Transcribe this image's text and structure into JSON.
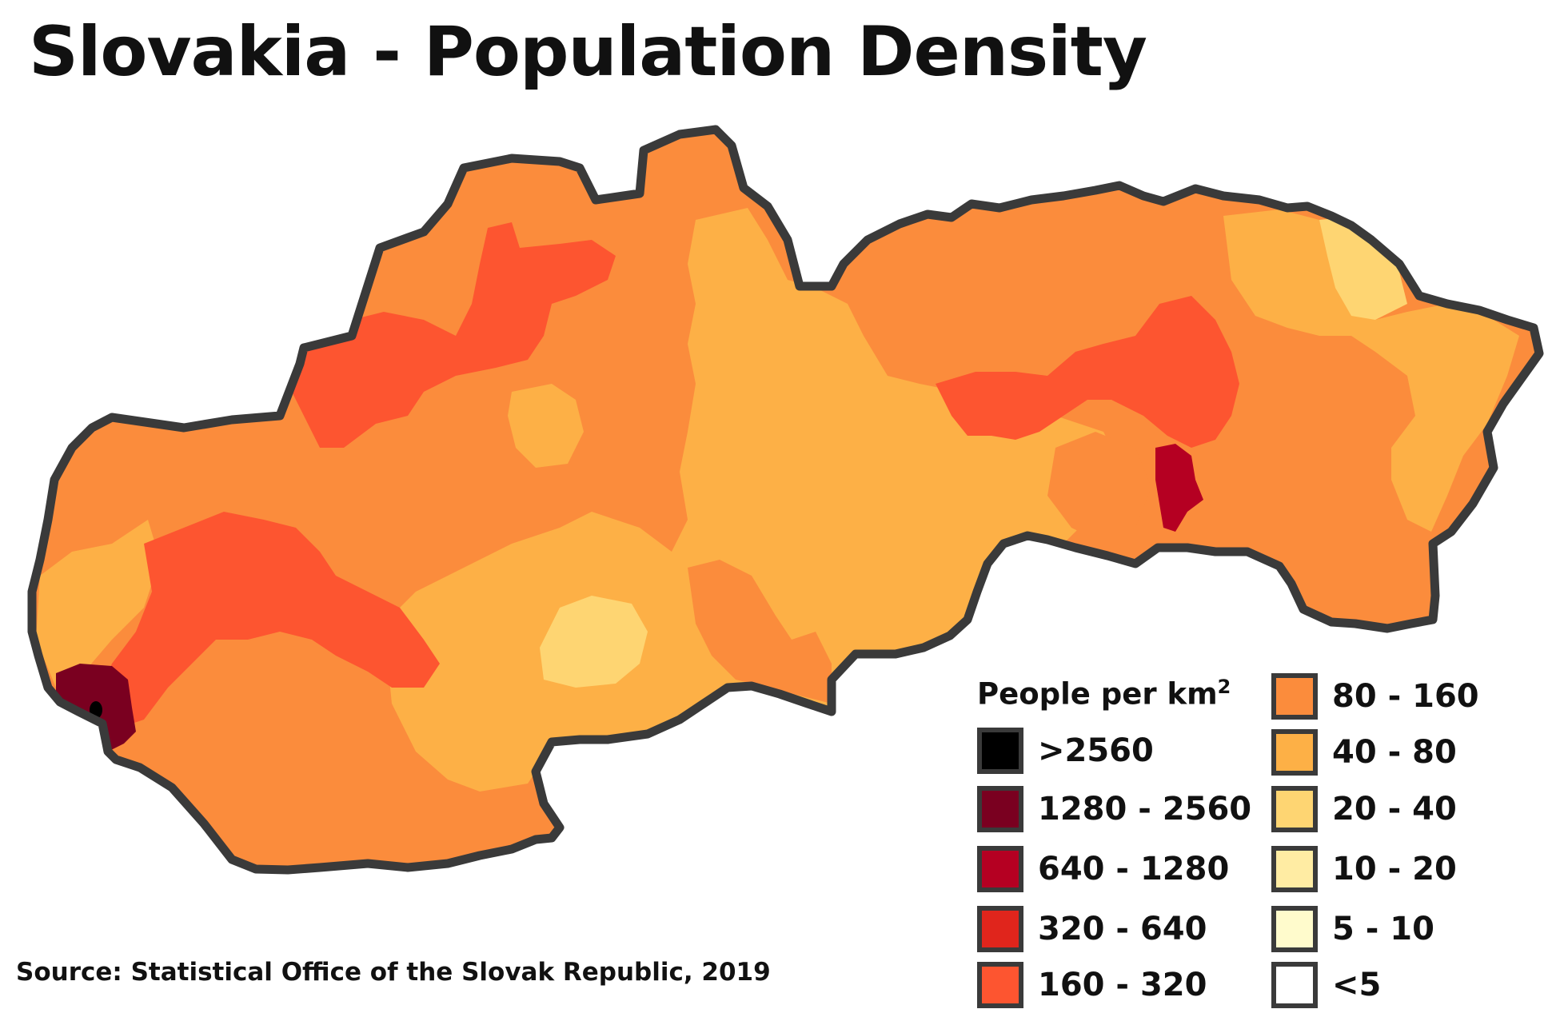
{
  "title": "Slovakia - Population Density",
  "source": "Source:  Statistical Office of the Slovak Republic, 2019",
  "legend": {
    "title": "People per km",
    "title_superscript": "2",
    "items": [
      {
        "label": ">2560",
        "color": "#000000"
      },
      {
        "label": "1280 - 2560",
        "color": "#7a0020"
      },
      {
        "label": "640 - 1280",
        "color": "#b50022"
      },
      {
        "label": "320 - 640",
        "color": "#e0251c"
      },
      {
        "label": "160 - 320",
        "color": "#fd5530"
      },
      {
        "label": "80 - 160",
        "color": "#fb8c3c"
      },
      {
        "label": "40 - 80",
        "color": "#fdb046"
      },
      {
        "label": "20 - 40",
        "color": "#fed572"
      },
      {
        "label": "10 - 20",
        "color": "#ffeca3"
      },
      {
        "label": "5 - 10",
        "color": "#fffbcc"
      },
      {
        "label": "<5",
        "color": "#ffffff"
      }
    ]
  },
  "map": {
    "outline_color": "#3a3a3a"
  }
}
